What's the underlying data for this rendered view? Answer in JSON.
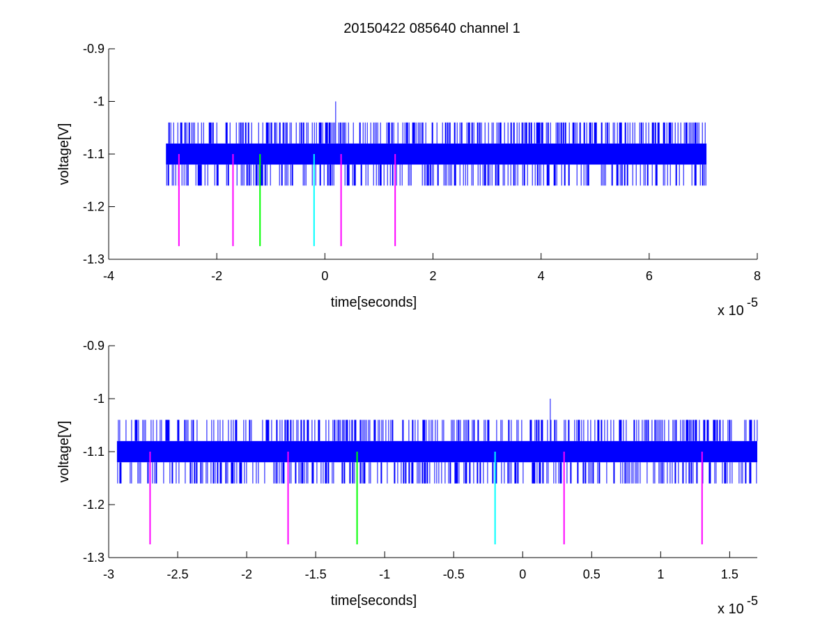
{
  "figure": {
    "title": "20150422 085640 channel 1"
  },
  "chart_data": [
    {
      "type": "line",
      "title": "20150422 085640 channel 1",
      "xlabel": "time[seconds]",
      "ylabel": "voltage[V]",
      "x_exponent": "x 10",
      "x_exponent_power": "-5",
      "xlim": [
        -4e-05,
        8e-05
      ],
      "ylim": [
        -1.3,
        -0.9
      ],
      "xticks": [
        -4e-05,
        -2e-05,
        0,
        2e-05,
        4e-05,
        6e-05,
        8e-05
      ],
      "xtick_labels": [
        "-4",
        "-2",
        "0",
        "2",
        "4",
        "6",
        "8"
      ],
      "yticks": [
        -1.3,
        -1.2,
        -1.1,
        -1.0,
        -0.9
      ],
      "ytick_labels": [
        "-1.3",
        "-1.2",
        "-1.1",
        "-1",
        "-0.9"
      ],
      "grid": false,
      "series": [
        {
          "color": "#0000ff",
          "style": "dense-noise-band",
          "x_range": [
            -2.94e-05,
            7.06e-05
          ],
          "band": [
            -1.12,
            -1.08
          ],
          "spike_levels": [
            -1.16,
            -1.04
          ],
          "peak": {
            "x": 2e-06,
            "y": -1.0
          }
        },
        {
          "color": "#ff00ff",
          "style": "markers",
          "x": [
            -2.7e-05,
            -1.7e-05,
            3e-06,
            1.3e-05
          ],
          "y_top": -1.1,
          "y_bottom": -1.275
        },
        {
          "color": "#00ff00",
          "style": "markers",
          "x": [
            -1.2e-05
          ],
          "y_top": -1.1,
          "y_bottom": -1.275
        },
        {
          "color": "#00ffff",
          "style": "markers",
          "x": [
            -2e-06
          ],
          "y_top": -1.1,
          "y_bottom": -1.275
        }
      ]
    },
    {
      "type": "line",
      "title": "",
      "xlabel": "time[seconds]",
      "ylabel": "voltage[V]",
      "x_exponent": "x 10",
      "x_exponent_power": "-5",
      "xlim": [
        -3e-05,
        1.7e-05
      ],
      "ylim": [
        -1.3,
        -0.9
      ],
      "xticks": [
        -3e-05,
        -2.5e-05,
        -2e-05,
        -1.5e-05,
        -1e-05,
        -5e-06,
        0,
        5e-06,
        1e-05,
        1.5e-05
      ],
      "xtick_labels": [
        "-3",
        "-2.5",
        "-2",
        "-1.5",
        "-1",
        "-0.5",
        "0",
        "0.5",
        "1",
        "1.5"
      ],
      "yticks": [
        -1.3,
        -1.2,
        -1.1,
        -1.0,
        -0.9
      ],
      "ytick_labels": [
        "-1.3",
        "-1.2",
        "-1.1",
        "-1",
        "-0.9"
      ],
      "grid": false,
      "series": [
        {
          "color": "#0000ff",
          "style": "dense-noise-band",
          "x_range": [
            -2.94e-05,
            1.7e-05
          ],
          "band": [
            -1.12,
            -1.08
          ],
          "spike_levels": [
            -1.16,
            -1.04
          ],
          "peak": {
            "x": 2e-06,
            "y": -1.0
          }
        },
        {
          "color": "#ff00ff",
          "style": "markers",
          "x": [
            -2.7e-05,
            -1.7e-05,
            3e-06,
            1.3e-05
          ],
          "y_top": -1.1,
          "y_bottom": -1.275
        },
        {
          "color": "#00ff00",
          "style": "markers",
          "x": [
            -1.2e-05
          ],
          "y_top": -1.1,
          "y_bottom": -1.275
        },
        {
          "color": "#00ffff",
          "style": "markers",
          "x": [
            -2e-06
          ],
          "y_top": -1.1,
          "y_bottom": -1.275
        }
      ]
    }
  ]
}
